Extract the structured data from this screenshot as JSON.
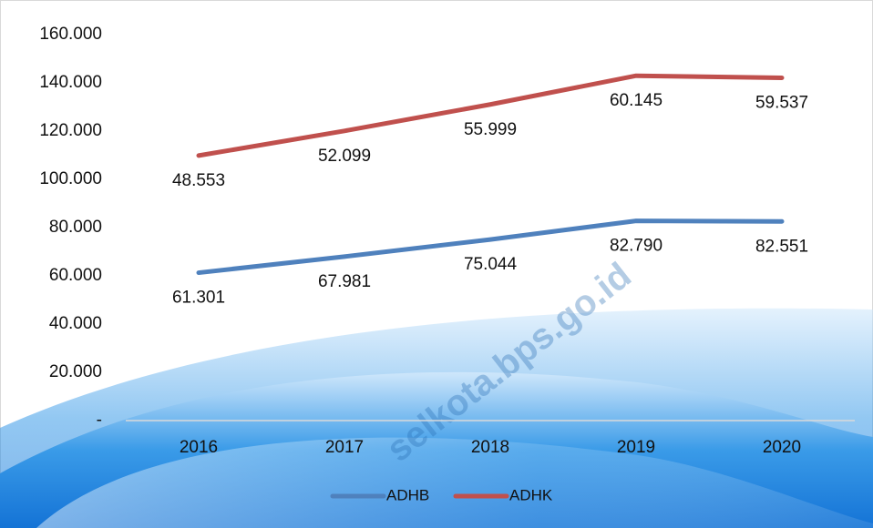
{
  "chart_data": {
    "type": "line",
    "stacked": true,
    "categories": [
      "2016",
      "2017",
      "2018",
      "2019",
      "2020"
    ],
    "series": [
      {
        "name": "ADHB",
        "color": "#4f81bd",
        "values": [
          61301,
          67981,
          75044,
          82790,
          82551
        ],
        "value_labels": [
          "61.301",
          "67.981",
          "75.044",
          "82.790",
          "82.551"
        ]
      },
      {
        "name": "ADHK",
        "color": "#c0504d",
        "values": [
          48553,
          52099,
          55999,
          60145,
          59537
        ],
        "value_labels": [
          "48.553",
          "52.099",
          "55.999",
          "60.145",
          "59.537"
        ]
      }
    ],
    "ylim": [
      0,
      160000
    ],
    "yticks": [
      {
        "value": 0,
        "label": "-"
      },
      {
        "value": 20000,
        "label": "20.000"
      },
      {
        "value": 40000,
        "label": "40.000"
      },
      {
        "value": 60000,
        "label": "60.000"
      },
      {
        "value": 80000,
        "label": "80.000"
      },
      {
        "value": 100000,
        "label": "100.000"
      },
      {
        "value": 120000,
        "label": "120.000"
      },
      {
        "value": 140000,
        "label": "140.000"
      },
      {
        "value": 160000,
        "label": "160.000"
      }
    ],
    "legend": "bottom",
    "watermark": "selkota.bps.go.id"
  }
}
